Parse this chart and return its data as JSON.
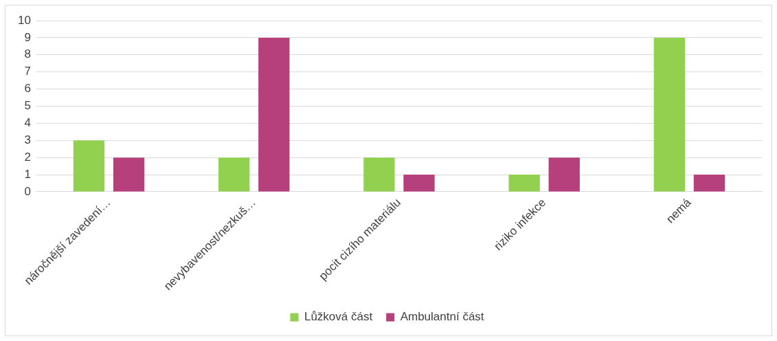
{
  "chart_data": {
    "type": "bar",
    "categories": [
      "náročnější zavedení…",
      "nevybavenost/nezkuš…",
      "pocit cizího materiálu",
      "riziko infekce",
      "nemá"
    ],
    "series": [
      {
        "name": "Lůžková část",
        "color": "#92d050",
        "values": [
          3,
          2,
          2,
          1,
          9
        ]
      },
      {
        "name": "Ambulantní část",
        "color": "#b5407c",
        "values": [
          2,
          9,
          1,
          2,
          1
        ]
      }
    ],
    "ylim": [
      0,
      10
    ],
    "yticks": [
      0,
      1,
      2,
      3,
      4,
      5,
      6,
      7,
      8,
      9,
      10
    ],
    "grid": "y",
    "legend": "bottom"
  }
}
